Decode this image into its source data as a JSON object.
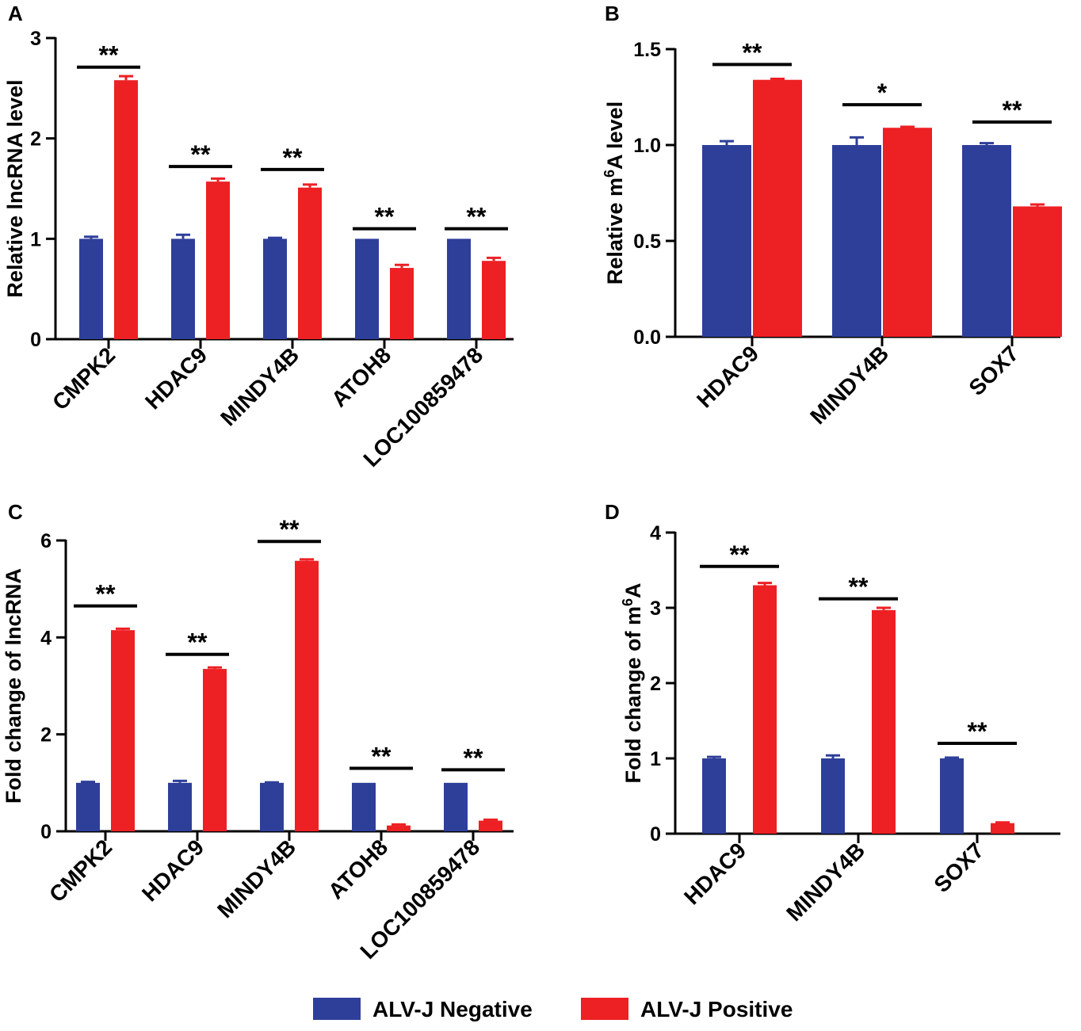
{
  "colors": {
    "negative": "#2e3f9a",
    "positive": "#ed2024",
    "axis": "#000000"
  },
  "legend": {
    "items": [
      "ALV-J Negative",
      "ALV-J Positive"
    ],
    "position": "bottom-center"
  },
  "chart_data": [
    {
      "panel": "A",
      "type": "bar",
      "ylabel": "Relative lncRNA level",
      "ylim": [
        0,
        3
      ],
      "yticks": [
        "0",
        "1",
        "2",
        "3"
      ],
      "categories": [
        "CMPK2",
        "HDAC9",
        "MINDY4B",
        "ATOH8",
        "LOC100859478"
      ],
      "series": [
        {
          "name": "ALV-J Negative",
          "values": [
            1.0,
            1.0,
            1.0,
            1.0,
            1.0
          ],
          "errors": [
            0.02,
            0.04,
            0.01,
            0.0,
            0.0
          ]
        },
        {
          "name": "ALV-J Positive",
          "values": [
            2.58,
            1.57,
            1.51,
            0.71,
            0.78
          ],
          "errors": [
            0.04,
            0.03,
            0.03,
            0.03,
            0.03
          ]
        }
      ],
      "significance": [
        "**",
        "**",
        "**",
        "**",
        "**"
      ],
      "sig_heights": [
        2.71,
        1.72,
        1.69,
        1.1,
        1.1
      ]
    },
    {
      "panel": "B",
      "type": "bar",
      "ylabel_pre": "Relative m",
      "ylabel_sup": "6",
      "ylabel_post": "A level",
      "ylim": [
        0,
        1.5
      ],
      "yticks": [
        "0.0",
        "0.5",
        "1.0",
        "1.5"
      ],
      "categories": [
        "HDAC9",
        "MINDY4B",
        "SOX7"
      ],
      "series": [
        {
          "name": "ALV-J Negative",
          "values": [
            1.0,
            1.0,
            1.0
          ],
          "errors": [
            0.02,
            0.04,
            0.01
          ]
        },
        {
          "name": "ALV-J Positive",
          "values": [
            1.34,
            1.09,
            0.68
          ],
          "errors": [
            0.005,
            0.005,
            0.01
          ]
        }
      ],
      "significance": [
        "**",
        "*",
        "**"
      ],
      "sig_heights": [
        1.42,
        1.21,
        1.12
      ]
    },
    {
      "panel": "C",
      "type": "bar",
      "ylabel": "Fold change of lncRNA",
      "ylim": [
        0,
        6
      ],
      "yticks": [
        "0",
        "2",
        "4",
        "6"
      ],
      "categories": [
        "CMPK2",
        "HDAC9",
        "MINDY4B",
        "ATOH8",
        "LOC100859478"
      ],
      "series": [
        {
          "name": "ALV-J Negative",
          "values": [
            1.0,
            1.0,
            1.0,
            1.0,
            1.0
          ],
          "errors": [
            0.02,
            0.04,
            0.01,
            0.0,
            0.0
          ]
        },
        {
          "name": "ALV-J Positive",
          "values": [
            4.15,
            3.35,
            5.58,
            0.12,
            0.22
          ],
          "errors": [
            0.03,
            0.03,
            0.03,
            0.02,
            0.02
          ]
        }
      ],
      "significance": [
        "**",
        "**",
        "**",
        "**",
        "**"
      ],
      "sig_heights": [
        4.65,
        3.65,
        5.98,
        1.3,
        1.27
      ]
    },
    {
      "panel": "D",
      "type": "bar",
      "ylabel_pre": "Fold change of m",
      "ylabel_sup": "6",
      "ylabel_post": "A",
      "ylim": [
        0,
        4
      ],
      "yticks": [
        "0",
        "1",
        "2",
        "3",
        "4"
      ],
      "categories": [
        "HDAC9",
        "MINDY4B",
        "SOX7"
      ],
      "series": [
        {
          "name": "ALV-J Negative",
          "values": [
            1.0,
            1.0,
            1.0
          ],
          "errors": [
            0.02,
            0.04,
            0.01
          ]
        },
        {
          "name": "ALV-J Positive",
          "values": [
            3.3,
            2.97,
            0.14
          ],
          "errors": [
            0.03,
            0.03,
            0.01
          ]
        }
      ],
      "significance": [
        "**",
        "**",
        "**"
      ],
      "sig_heights": [
        3.55,
        3.12,
        1.2
      ]
    }
  ]
}
